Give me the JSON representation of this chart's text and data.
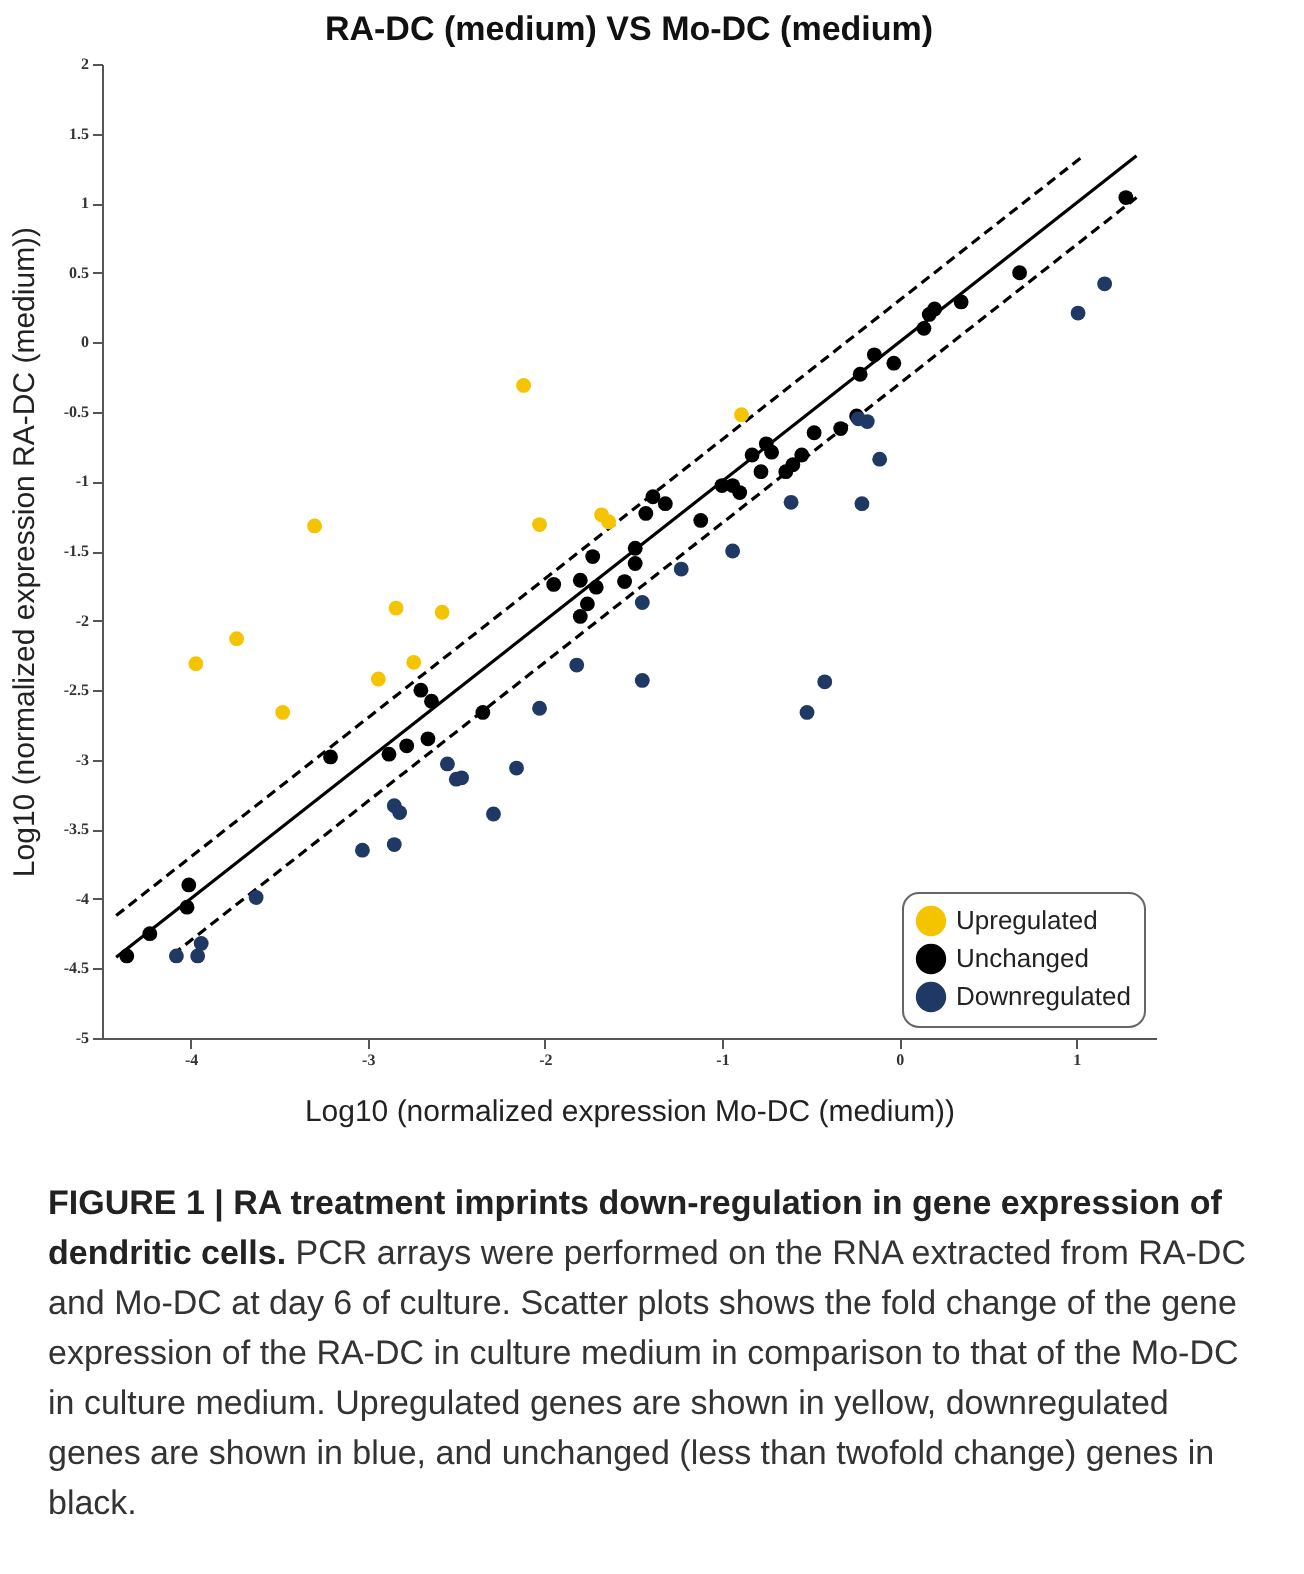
{
  "chart_data": {
    "type": "scatter",
    "title": "RA-DC (medium) VS Mo-DC (medium)",
    "xlabel": "Log10 (normalized expression Mo-DC (medium))",
    "ylabel": "Log10 (normalized expression RA-DC (medium))",
    "xlim": [
      -4.5,
      1.45
    ],
    "ylim": [
      -5,
      2
    ],
    "xticks": [
      -4,
      -3,
      -2,
      -1,
      0,
      1
    ],
    "yticks": [
      -5,
      -4.5,
      -4,
      -3.5,
      -3,
      -2.5,
      -2,
      -1.5,
      -1,
      -0.5,
      0,
      0.5,
      1,
      1.5,
      2
    ],
    "legend": "bottom right",
    "series": [
      {
        "type": "line",
        "color": "#000000",
        "line_style": "solid",
        "x": [
          -4.42,
          1.34
        ],
        "values": [
          -4.42,
          1.34
        ]
      },
      {
        "type": "line",
        "color": "#000000",
        "line_style": "dashed",
        "x": [
          -4.42,
          1.03
        ],
        "values": [
          -4.12,
          1.33
        ]
      },
      {
        "type": "line",
        "color": "#000000",
        "line_style": "dashed",
        "x": [
          -4.1,
          1.34
        ],
        "values": [
          -4.4,
          1.04
        ]
      },
      {
        "name": "Upregulated",
        "color": "#f5c400",
        "marker": "circle",
        "x": [
          -3.97,
          -3.74,
          -3.48,
          -3.3,
          -2.94,
          -2.84,
          -2.74,
          -2.58,
          -2.03,
          -1.68,
          -1.64,
          -2.12,
          -0.89
        ],
        "values": [
          -2.31,
          -2.13,
          -2.66,
          -1.32,
          -2.42,
          -1.91,
          -2.3,
          -1.94,
          -1.31,
          -1.24,
          -1.29,
          -0.31,
          -0.52
        ]
      },
      {
        "name": "Unchanged",
        "color": "#000000",
        "marker": "circle",
        "x": [
          -4.36,
          -4.23,
          -4.02,
          -4.01,
          -3.21,
          -2.88,
          -2.78,
          -2.66,
          -2.7,
          -2.64,
          -2.35,
          -1.95,
          -1.8,
          -1.73,
          -1.71,
          -1.76,
          -1.8,
          -1.55,
          -1.49,
          -1.49,
          -1.43,
          -1.39,
          -1.32,
          -1.12,
          -1.0,
          -0.94,
          -0.9,
          -0.83,
          -0.78,
          -0.75,
          -0.72,
          -0.64,
          -0.6,
          -0.55,
          -0.48,
          -0.33,
          -0.24,
          -0.22,
          -0.14,
          -0.03,
          0.14,
          0.17,
          0.2,
          0.35,
          0.68,
          1.28
        ],
        "values": [
          -4.41,
          -4.25,
          -4.06,
          -3.9,
          -2.98,
          -2.96,
          -2.9,
          -2.85,
          -2.5,
          -2.58,
          -2.66,
          -1.74,
          -1.71,
          -1.54,
          -1.76,
          -1.88,
          -1.97,
          -1.72,
          -1.48,
          -1.59,
          -1.23,
          -1.11,
          -1.16,
          -1.28,
          -1.03,
          -1.03,
          -1.08,
          -0.81,
          -0.93,
          -0.73,
          -0.79,
          -0.93,
          -0.88,
          -0.81,
          -0.65,
          -0.62,
          -0.53,
          -0.23,
          -0.09,
          -0.15,
          0.1,
          0.2,
          0.24,
          0.29,
          0.5,
          1.04
        ]
      },
      {
        "name": "Downregulated",
        "color": "#1f3864",
        "marker": "circle",
        "x": [
          -4.08,
          -3.96,
          -3.94,
          -3.63,
          -3.03,
          -2.85,
          -2.85,
          -2.82,
          -2.55,
          -2.5,
          -2.47,
          -2.29,
          -2.16,
          -2.03,
          -1.82,
          -1.45,
          -1.45,
          -1.23,
          -0.94,
          -0.61,
          -0.21,
          -0.42,
          -0.52,
          -0.23,
          -0.18,
          -0.11,
          1.01,
          1.16
        ],
        "values": [
          -4.41,
          -4.41,
          -4.32,
          -3.99,
          -3.65,
          -3.61,
          -3.33,
          -3.38,
          -3.03,
          -3.14,
          -3.13,
          -3.39,
          -3.06,
          -2.63,
          -2.32,
          -1.87,
          -2.43,
          -1.63,
          -1.5,
          -1.15,
          -1.16,
          -2.44,
          -2.66,
          -0.55,
          -0.57,
          -0.84,
          0.21,
          0.42
        ]
      }
    ],
    "annotations": [
      "FIGURE 1 | RA treatment imprints down-regulation in gene expression of dendritic cells.",
      "PCR arrays were performed on the RNA extracted from RA-DC and Mo-DC at day 6 of culture. Scatter plots shows the fold change of the gene expression of the RA-DC in culture medium in comparison to that of the Mo-DC in culture medium. Upregulated genes are shown in yellow, downregulated genes are shown in blue, and unchanged (less than twofold change) genes in black."
    ]
  }
}
